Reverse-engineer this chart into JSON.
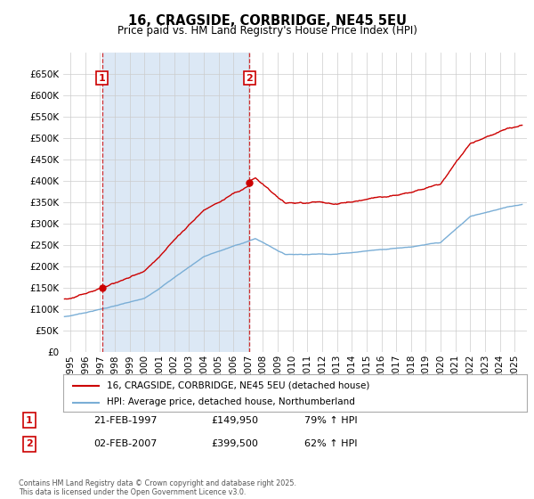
{
  "title": "16, CRAGSIDE, CORBRIDGE, NE45 5EU",
  "subtitle": "Price paid vs. HM Land Registry's House Price Index (HPI)",
  "legend_line1": "16, CRAGSIDE, CORBRIDGE, NE45 5EU (detached house)",
  "legend_line2": "HPI: Average price, detached house, Northumberland",
  "red_color": "#cc0000",
  "blue_color": "#7aaed6",
  "shading_color": "#dce8f5",
  "grid_color": "#cccccc",
  "background_color": "#ffffff",
  "marker1_year": 1997.13,
  "marker1_price": 149950,
  "marker1_date": "21-FEB-1997",
  "marker1_price_str": "£149,950",
  "marker1_hpi": "79% ↑ HPI",
  "marker2_year": 2007.09,
  "marker2_price": 399500,
  "marker2_date": "02-FEB-2007",
  "marker2_price_str": "£399,500",
  "marker2_hpi": "62% ↑ HPI",
  "footnote": "Contains HM Land Registry data © Crown copyright and database right 2025.\nThis data is licensed under the Open Government Licence v3.0.",
  "ylim_max": 700000,
  "ylim_min": 0,
  "xlim_min": 1994.5,
  "xlim_max": 2025.8
}
